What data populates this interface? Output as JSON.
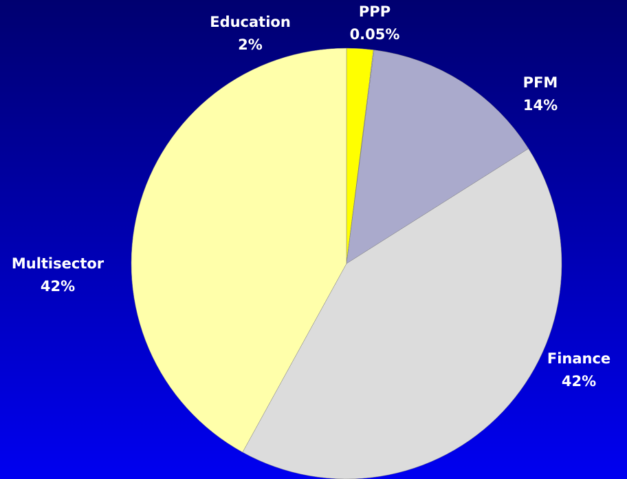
{
  "chart_data": {
    "type": "pie",
    "categories": [
      "Education",
      "PPP",
      "PFM",
      "Finance",
      "Multisector"
    ],
    "values": [
      2,
      0.05,
      14,
      42,
      42
    ],
    "value_labels": [
      "2%",
      "0.05%",
      "14%",
      "42%",
      "42%"
    ],
    "colors": [
      "#ffff00",
      "#ccccff",
      "#aaaacc",
      "#dcdcdc",
      "#ffffaa"
    ]
  }
}
